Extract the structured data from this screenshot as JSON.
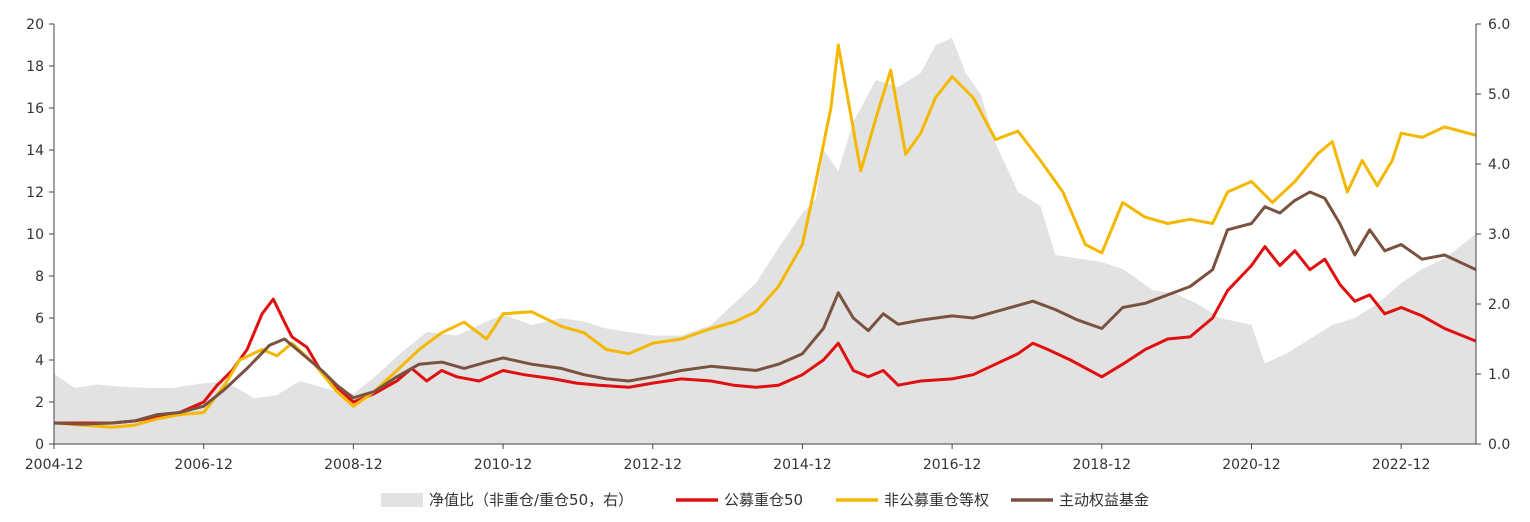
{
  "chart_data": {
    "type": "line",
    "title": "",
    "xlabel": "",
    "ylabel": "",
    "ylim": [
      0,
      20
    ],
    "y2lim": [
      0,
      6
    ],
    "yticks": [
      "0",
      "2",
      "4",
      "6",
      "8",
      "10",
      "12",
      "14",
      "16",
      "18",
      "20"
    ],
    "y2ticks": [
      "0.0",
      "1.0",
      "2.0",
      "3.0",
      "4.0",
      "5.0",
      "6.0"
    ],
    "xticks": [
      {
        "label": "2004-12",
        "x": 2004.92
      },
      {
        "label": "2006-12",
        "x": 2006.92
      },
      {
        "label": "2008-12",
        "x": 2008.92
      },
      {
        "label": "2010-12",
        "x": 2010.92
      },
      {
        "label": "2012-12",
        "x": 2012.92
      },
      {
        "label": "2014-12",
        "x": 2014.92
      },
      {
        "label": "2016-12",
        "x": 2016.92
      },
      {
        "label": "2018-12",
        "x": 2018.92
      },
      {
        "label": "2020-12",
        "x": 2020.92
      },
      {
        "label": "2022-12",
        "x": 2022.92
      }
    ],
    "xlim": [
      2004.92,
      2023.92
    ],
    "grid": false,
    "legend_position": "bottom",
    "series": [
      {
        "name": "净值比（非重仓/重仓50，右）",
        "type": "area",
        "axis": "right",
        "color": "#e2e2e2",
        "points": [
          [
            2004.92,
            1.0
          ],
          [
            2005.2,
            0.8
          ],
          [
            2005.5,
            0.85
          ],
          [
            2005.8,
            0.82
          ],
          [
            2006.2,
            0.8
          ],
          [
            2006.5,
            0.8
          ],
          [
            2006.8,
            0.85
          ],
          [
            2007.2,
            0.9
          ],
          [
            2007.6,
            0.65
          ],
          [
            2007.9,
            0.7
          ],
          [
            2008.2,
            0.9
          ],
          [
            2008.7,
            0.75
          ],
          [
            2008.92,
            0.72
          ],
          [
            2009.2,
            0.95
          ],
          [
            2009.5,
            1.25
          ],
          [
            2009.9,
            1.6
          ],
          [
            2010.3,
            1.55
          ],
          [
            2010.7,
            1.75
          ],
          [
            2010.92,
            1.85
          ],
          [
            2011.3,
            1.7
          ],
          [
            2011.7,
            1.8
          ],
          [
            2012.0,
            1.75
          ],
          [
            2012.3,
            1.65
          ],
          [
            2012.6,
            1.6
          ],
          [
            2012.92,
            1.55
          ],
          [
            2013.3,
            1.55
          ],
          [
            2013.7,
            1.7
          ],
          [
            2014.0,
            2.0
          ],
          [
            2014.3,
            2.3
          ],
          [
            2014.6,
            2.8
          ],
          [
            2014.92,
            3.3
          ],
          [
            2015.1,
            3.5
          ],
          [
            2015.2,
            4.2
          ],
          [
            2015.4,
            3.9
          ],
          [
            2015.6,
            4.6
          ],
          [
            2015.9,
            5.2
          ],
          [
            2016.2,
            5.1
          ],
          [
            2016.5,
            5.3
          ],
          [
            2016.7,
            5.7
          ],
          [
            2016.92,
            5.8
          ],
          [
            2017.1,
            5.3
          ],
          [
            2017.3,
            5.0
          ],
          [
            2017.5,
            4.3
          ],
          [
            2017.8,
            3.6
          ],
          [
            2018.1,
            3.4
          ],
          [
            2018.3,
            2.7
          ],
          [
            2018.6,
            2.65
          ],
          [
            2018.92,
            2.6
          ],
          [
            2019.2,
            2.5
          ],
          [
            2019.6,
            2.2
          ],
          [
            2019.9,
            2.15
          ],
          [
            2020.2,
            2.0
          ],
          [
            2020.5,
            1.8
          ],
          [
            2020.92,
            1.7
          ],
          [
            2021.1,
            1.15
          ],
          [
            2021.4,
            1.3
          ],
          [
            2021.7,
            1.5
          ],
          [
            2022.0,
            1.7
          ],
          [
            2022.3,
            1.8
          ],
          [
            2022.6,
            2.0
          ],
          [
            2022.92,
            2.3
          ],
          [
            2023.2,
            2.5
          ],
          [
            2023.5,
            2.65
          ],
          [
            2023.92,
            3.0
          ]
        ]
      },
      {
        "name": "公募重仓50",
        "type": "line",
        "axis": "left",
        "color": "#e01010",
        "points": [
          [
            2004.92,
            1.0
          ],
          [
            2005.3,
            1.0
          ],
          [
            2005.7,
            1.0
          ],
          [
            2006.0,
            1.1
          ],
          [
            2006.3,
            1.3
          ],
          [
            2006.6,
            1.5
          ],
          [
            2006.92,
            2.0
          ],
          [
            2007.1,
            2.8
          ],
          [
            2007.3,
            3.5
          ],
          [
            2007.5,
            4.5
          ],
          [
            2007.7,
            6.2
          ],
          [
            2007.85,
            6.9
          ],
          [
            2008.0,
            5.8
          ],
          [
            2008.1,
            5.1
          ],
          [
            2008.3,
            4.6
          ],
          [
            2008.5,
            3.4
          ],
          [
            2008.7,
            2.7
          ],
          [
            2008.92,
            2.0
          ],
          [
            2009.2,
            2.4
          ],
          [
            2009.5,
            3.0
          ],
          [
            2009.7,
            3.6
          ],
          [
            2009.9,
            3.0
          ],
          [
            2010.1,
            3.5
          ],
          [
            2010.3,
            3.2
          ],
          [
            2010.6,
            3.0
          ],
          [
            2010.92,
            3.5
          ],
          [
            2011.2,
            3.3
          ],
          [
            2011.6,
            3.1
          ],
          [
            2011.9,
            2.9
          ],
          [
            2012.2,
            2.8
          ],
          [
            2012.6,
            2.7
          ],
          [
            2012.92,
            2.9
          ],
          [
            2013.3,
            3.1
          ],
          [
            2013.7,
            3.0
          ],
          [
            2014.0,
            2.8
          ],
          [
            2014.3,
            2.7
          ],
          [
            2014.6,
            2.8
          ],
          [
            2014.92,
            3.3
          ],
          [
            2015.2,
            4.0
          ],
          [
            2015.4,
            4.8
          ],
          [
            2015.6,
            3.5
          ],
          [
            2015.8,
            3.2
          ],
          [
            2016.0,
            3.5
          ],
          [
            2016.2,
            2.8
          ],
          [
            2016.5,
            3.0
          ],
          [
            2016.92,
            3.1
          ],
          [
            2017.2,
            3.3
          ],
          [
            2017.5,
            3.8
          ],
          [
            2017.8,
            4.3
          ],
          [
            2018.0,
            4.8
          ],
          [
            2018.2,
            4.5
          ],
          [
            2018.5,
            4.0
          ],
          [
            2018.92,
            3.2
          ],
          [
            2019.2,
            3.8
          ],
          [
            2019.5,
            4.5
          ],
          [
            2019.8,
            5.0
          ],
          [
            2020.1,
            5.1
          ],
          [
            2020.4,
            6.0
          ],
          [
            2020.6,
            7.3
          ],
          [
            2020.92,
            8.5
          ],
          [
            2021.1,
            9.4
          ],
          [
            2021.3,
            8.5
          ],
          [
            2021.5,
            9.2
          ],
          [
            2021.7,
            8.3
          ],
          [
            2021.9,
            8.8
          ],
          [
            2022.1,
            7.6
          ],
          [
            2022.3,
            6.8
          ],
          [
            2022.5,
            7.1
          ],
          [
            2022.7,
            6.2
          ],
          [
            2022.92,
            6.5
          ],
          [
            2023.2,
            6.1
          ],
          [
            2023.5,
            5.5
          ],
          [
            2023.92,
            4.9
          ]
        ]
      },
      {
        "name": "非公募重仓等权",
        "type": "line",
        "axis": "left",
        "color": "#f5b800",
        "points": [
          [
            2004.92,
            1.0
          ],
          [
            2005.3,
            0.9
          ],
          [
            2005.7,
            0.8
          ],
          [
            2006.0,
            0.9
          ],
          [
            2006.3,
            1.2
          ],
          [
            2006.6,
            1.4
          ],
          [
            2006.92,
            1.5
          ],
          [
            2007.2,
            2.8
          ],
          [
            2007.4,
            4.0
          ],
          [
            2007.7,
            4.5
          ],
          [
            2007.9,
            4.2
          ],
          [
            2008.1,
            4.8
          ],
          [
            2008.4,
            3.8
          ],
          [
            2008.7,
            2.5
          ],
          [
            2008.92,
            1.8
          ],
          [
            2009.2,
            2.5
          ],
          [
            2009.5,
            3.5
          ],
          [
            2009.8,
            4.5
          ],
          [
            2010.1,
            5.3
          ],
          [
            2010.4,
            5.8
          ],
          [
            2010.7,
            5.0
          ],
          [
            2010.92,
            6.2
          ],
          [
            2011.3,
            6.3
          ],
          [
            2011.7,
            5.6
          ],
          [
            2012.0,
            5.3
          ],
          [
            2012.3,
            4.5
          ],
          [
            2012.6,
            4.3
          ],
          [
            2012.92,
            4.8
          ],
          [
            2013.3,
            5.0
          ],
          [
            2013.7,
            5.5
          ],
          [
            2014.0,
            5.8
          ],
          [
            2014.3,
            6.3
          ],
          [
            2014.6,
            7.5
          ],
          [
            2014.92,
            9.5
          ],
          [
            2015.1,
            12.5
          ],
          [
            2015.3,
            16.0
          ],
          [
            2015.4,
            19.0
          ],
          [
            2015.5,
            17.0
          ],
          [
            2015.7,
            13.0
          ],
          [
            2015.9,
            15.5
          ],
          [
            2016.1,
            17.8
          ],
          [
            2016.3,
            13.8
          ],
          [
            2016.5,
            14.8
          ],
          [
            2016.7,
            16.5
          ],
          [
            2016.92,
            17.5
          ],
          [
            2017.2,
            16.5
          ],
          [
            2017.5,
            14.5
          ],
          [
            2017.8,
            14.9
          ],
          [
            2018.1,
            13.5
          ],
          [
            2018.4,
            12.0
          ],
          [
            2018.7,
            9.5
          ],
          [
            2018.92,
            9.1
          ],
          [
            2019.2,
            11.5
          ],
          [
            2019.5,
            10.8
          ],
          [
            2019.8,
            10.5
          ],
          [
            2020.1,
            10.7
          ],
          [
            2020.4,
            10.5
          ],
          [
            2020.6,
            12.0
          ],
          [
            2020.92,
            12.5
          ],
          [
            2021.2,
            11.5
          ],
          [
            2021.5,
            12.5
          ],
          [
            2021.8,
            13.8
          ],
          [
            2022.0,
            14.4
          ],
          [
            2022.2,
            12.0
          ],
          [
            2022.4,
            13.5
          ],
          [
            2022.6,
            12.3
          ],
          [
            2022.8,
            13.5
          ],
          [
            2022.92,
            14.8
          ],
          [
            2023.2,
            14.6
          ],
          [
            2023.5,
            15.1
          ],
          [
            2023.92,
            14.7
          ]
        ]
      },
      {
        "name": "主动权益基金",
        "type": "line",
        "axis": "left",
        "color": "#7a5240",
        "points": [
          [
            2004.92,
            1.0
          ],
          [
            2005.3,
            0.95
          ],
          [
            2005.7,
            1.0
          ],
          [
            2006.0,
            1.1
          ],
          [
            2006.3,
            1.4
          ],
          [
            2006.6,
            1.5
          ],
          [
            2006.92,
            1.8
          ],
          [
            2007.2,
            2.6
          ],
          [
            2007.5,
            3.6
          ],
          [
            2007.8,
            4.7
          ],
          [
            2008.0,
            5.0
          ],
          [
            2008.2,
            4.4
          ],
          [
            2008.5,
            3.5
          ],
          [
            2008.7,
            2.8
          ],
          [
            2008.92,
            2.2
          ],
          [
            2009.2,
            2.5
          ],
          [
            2009.5,
            3.2
          ],
          [
            2009.8,
            3.8
          ],
          [
            2010.1,
            3.9
          ],
          [
            2010.4,
            3.6
          ],
          [
            2010.7,
            3.9
          ],
          [
            2010.92,
            4.1
          ],
          [
            2011.3,
            3.8
          ],
          [
            2011.7,
            3.6
          ],
          [
            2012.0,
            3.3
          ],
          [
            2012.3,
            3.1
          ],
          [
            2012.6,
            3.0
          ],
          [
            2012.92,
            3.2
          ],
          [
            2013.3,
            3.5
          ],
          [
            2013.7,
            3.7
          ],
          [
            2014.0,
            3.6
          ],
          [
            2014.3,
            3.5
          ],
          [
            2014.6,
            3.8
          ],
          [
            2014.92,
            4.3
          ],
          [
            2015.2,
            5.5
          ],
          [
            2015.4,
            7.2
          ],
          [
            2015.6,
            6.0
          ],
          [
            2015.8,
            5.4
          ],
          [
            2016.0,
            6.2
          ],
          [
            2016.2,
            5.7
          ],
          [
            2016.5,
            5.9
          ],
          [
            2016.92,
            6.1
          ],
          [
            2017.2,
            6.0
          ],
          [
            2017.5,
            6.3
          ],
          [
            2017.8,
            6.6
          ],
          [
            2018.0,
            6.8
          ],
          [
            2018.3,
            6.4
          ],
          [
            2018.6,
            5.9
          ],
          [
            2018.92,
            5.5
          ],
          [
            2019.2,
            6.5
          ],
          [
            2019.5,
            6.7
          ],
          [
            2019.8,
            7.1
          ],
          [
            2020.1,
            7.5
          ],
          [
            2020.4,
            8.3
          ],
          [
            2020.6,
            10.2
          ],
          [
            2020.92,
            10.5
          ],
          [
            2021.1,
            11.3
          ],
          [
            2021.3,
            11.0
          ],
          [
            2021.5,
            11.6
          ],
          [
            2021.7,
            12.0
          ],
          [
            2021.9,
            11.7
          ],
          [
            2022.1,
            10.5
          ],
          [
            2022.3,
            9.0
          ],
          [
            2022.5,
            10.2
          ],
          [
            2022.7,
            9.2
          ],
          [
            2022.92,
            9.5
          ],
          [
            2023.2,
            8.8
          ],
          [
            2023.5,
            9.0
          ],
          [
            2023.92,
            8.3
          ]
        ]
      }
    ]
  }
}
